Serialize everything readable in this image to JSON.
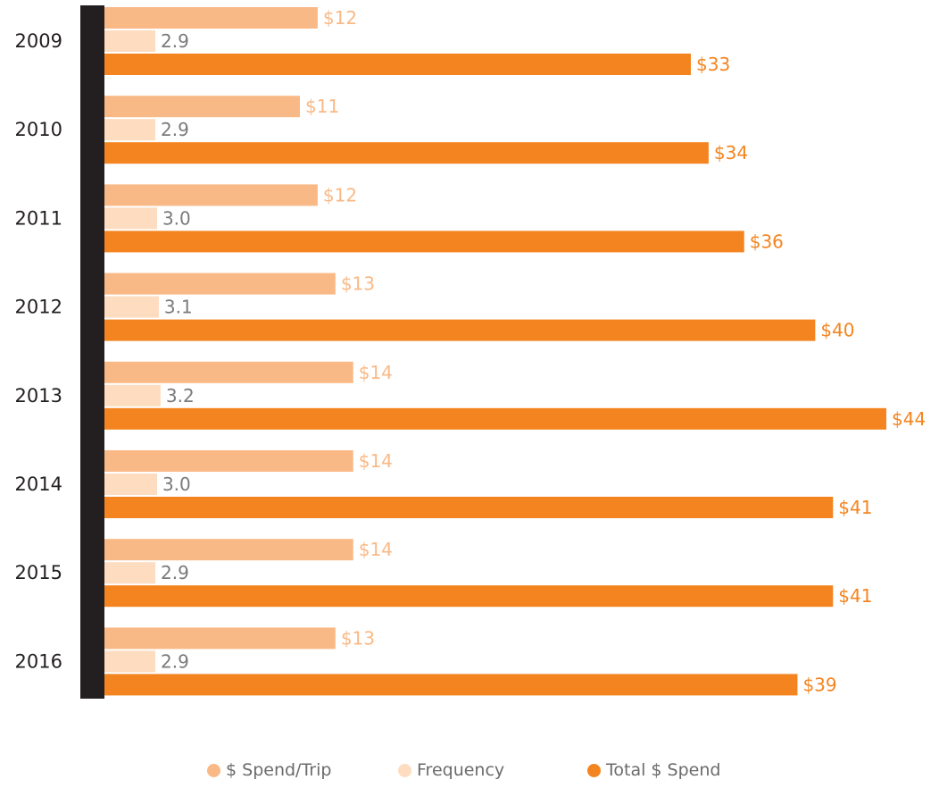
{
  "chart_data": {
    "type": "bar",
    "orientation": "horizontal",
    "categories": [
      "2009",
      "2010",
      "2011",
      "2012",
      "2013",
      "2014",
      "2015",
      "2016"
    ],
    "series": [
      {
        "name": "$ Spend/Trip",
        "values": [
          12,
          11,
          12,
          13,
          14,
          14,
          14,
          13
        ],
        "labels": [
          "$12",
          "$11",
          "$12",
          "$13",
          "$14",
          "$14",
          "$14",
          "$13"
        ],
        "color": "#F9B986",
        "label_color": "#F9B986"
      },
      {
        "name": "Frequency",
        "values": [
          2.9,
          2.9,
          3.0,
          3.1,
          3.2,
          3.0,
          2.9,
          2.9
        ],
        "labels": [
          "2.9",
          "2.9",
          "3.0",
          "3.1",
          "3.2",
          "3.0",
          "2.9",
          "2.9"
        ],
        "color": "#FDDCBF",
        "label_color": "#7a7a7a"
      },
      {
        "name": "Total $ Spend",
        "values": [
          33,
          34,
          36,
          40,
          44,
          41,
          41,
          39
        ],
        "labels": [
          "$33",
          "$34",
          "$36",
          "$40",
          "$44",
          "$41",
          "$41",
          "$39"
        ],
        "color": "#F4841F",
        "label_color": "#F4841F"
      }
    ],
    "title": "",
    "xlabel": "",
    "ylabel": "",
    "legend_position": "bottom",
    "grid": false
  }
}
